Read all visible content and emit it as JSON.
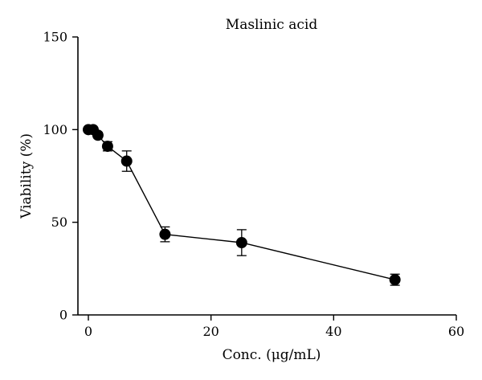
{
  "chart_data": {
    "type": "scatter",
    "title": "Maslinic acid",
    "xlabel": "Conc. (μg/mL)",
    "ylabel": "Viability (%)",
    "xlim": [
      0,
      60
    ],
    "ylim": [
      0,
      150
    ],
    "xticks": [
      0,
      20,
      40,
      60
    ],
    "yticks": [
      0,
      50,
      100,
      150
    ],
    "grid": false,
    "connected": true,
    "marker_color": "#000000",
    "points": [
      {
        "x": 0,
        "y": 100,
        "err": 0
      },
      {
        "x": 0.78,
        "y": 100,
        "err": 0
      },
      {
        "x": 1.56,
        "y": 97,
        "err": 1.5
      },
      {
        "x": 3.13,
        "y": 91,
        "err": 2.5
      },
      {
        "x": 6.25,
        "y": 83,
        "err": 5.5
      },
      {
        "x": 12.5,
        "y": 43.5,
        "err": 4
      },
      {
        "x": 25,
        "y": 39,
        "err": 7
      },
      {
        "x": 50,
        "y": 19,
        "err": 3
      }
    ]
  }
}
